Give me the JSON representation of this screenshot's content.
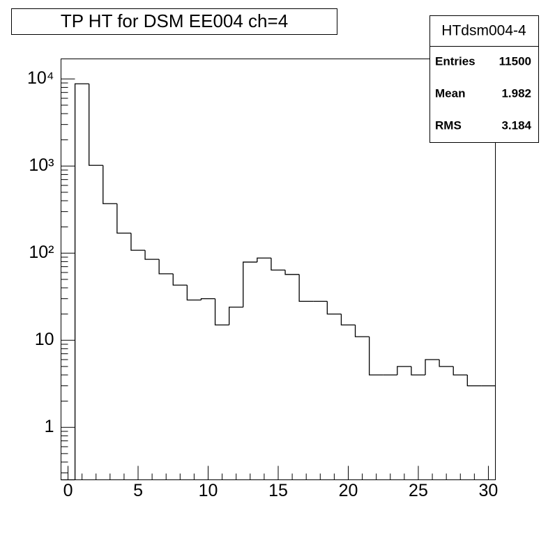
{
  "chart_data": {
    "type": "histogram",
    "title": "TP HT for DSM EE004 ch=4",
    "bins": [
      -0.5,
      0.5,
      1.5,
      2.5,
      3.5,
      4.5,
      5.5,
      6.5,
      7.5,
      8.5,
      9.5,
      10.5,
      11.5,
      12.5,
      13.5,
      14.5,
      15.5,
      16.5,
      17.5,
      18.5,
      19.5,
      20.5,
      21.5,
      22.5,
      23.5,
      24.5,
      25.5,
      26.5,
      27.5,
      28.5,
      29.5,
      30.5
    ],
    "values": [
      0,
      8800,
      1020,
      370,
      170,
      108,
      85,
      58,
      43,
      29,
      30,
      15,
      24,
      79,
      88,
      64,
      57,
      28,
      28,
      20,
      15,
      11,
      4,
      4,
      5,
      4,
      6,
      5,
      4,
      3,
      3
    ],
    "color": "#000000",
    "xlim": [
      -0.5,
      30.5
    ],
    "xticks": [
      0,
      5,
      10,
      15,
      20,
      25,
      30
    ],
    "ylim": [
      0.25,
      17000
    ],
    "log_y": true,
    "yticks": [
      1,
      10,
      {
        "value": 100,
        "label": "10²"
      },
      {
        "value": 1000,
        "label": "10³"
      },
      {
        "value": 10000,
        "label": "10⁴"
      }
    ],
    "stats": {
      "title": "HTdsm004-4",
      "rows": [
        {
          "label": "Entries",
          "value": 11500
        },
        {
          "label": "Mean",
          "value": 1.982
        },
        {
          "label": "RMS",
          "value": 3.184
        }
      ]
    }
  }
}
